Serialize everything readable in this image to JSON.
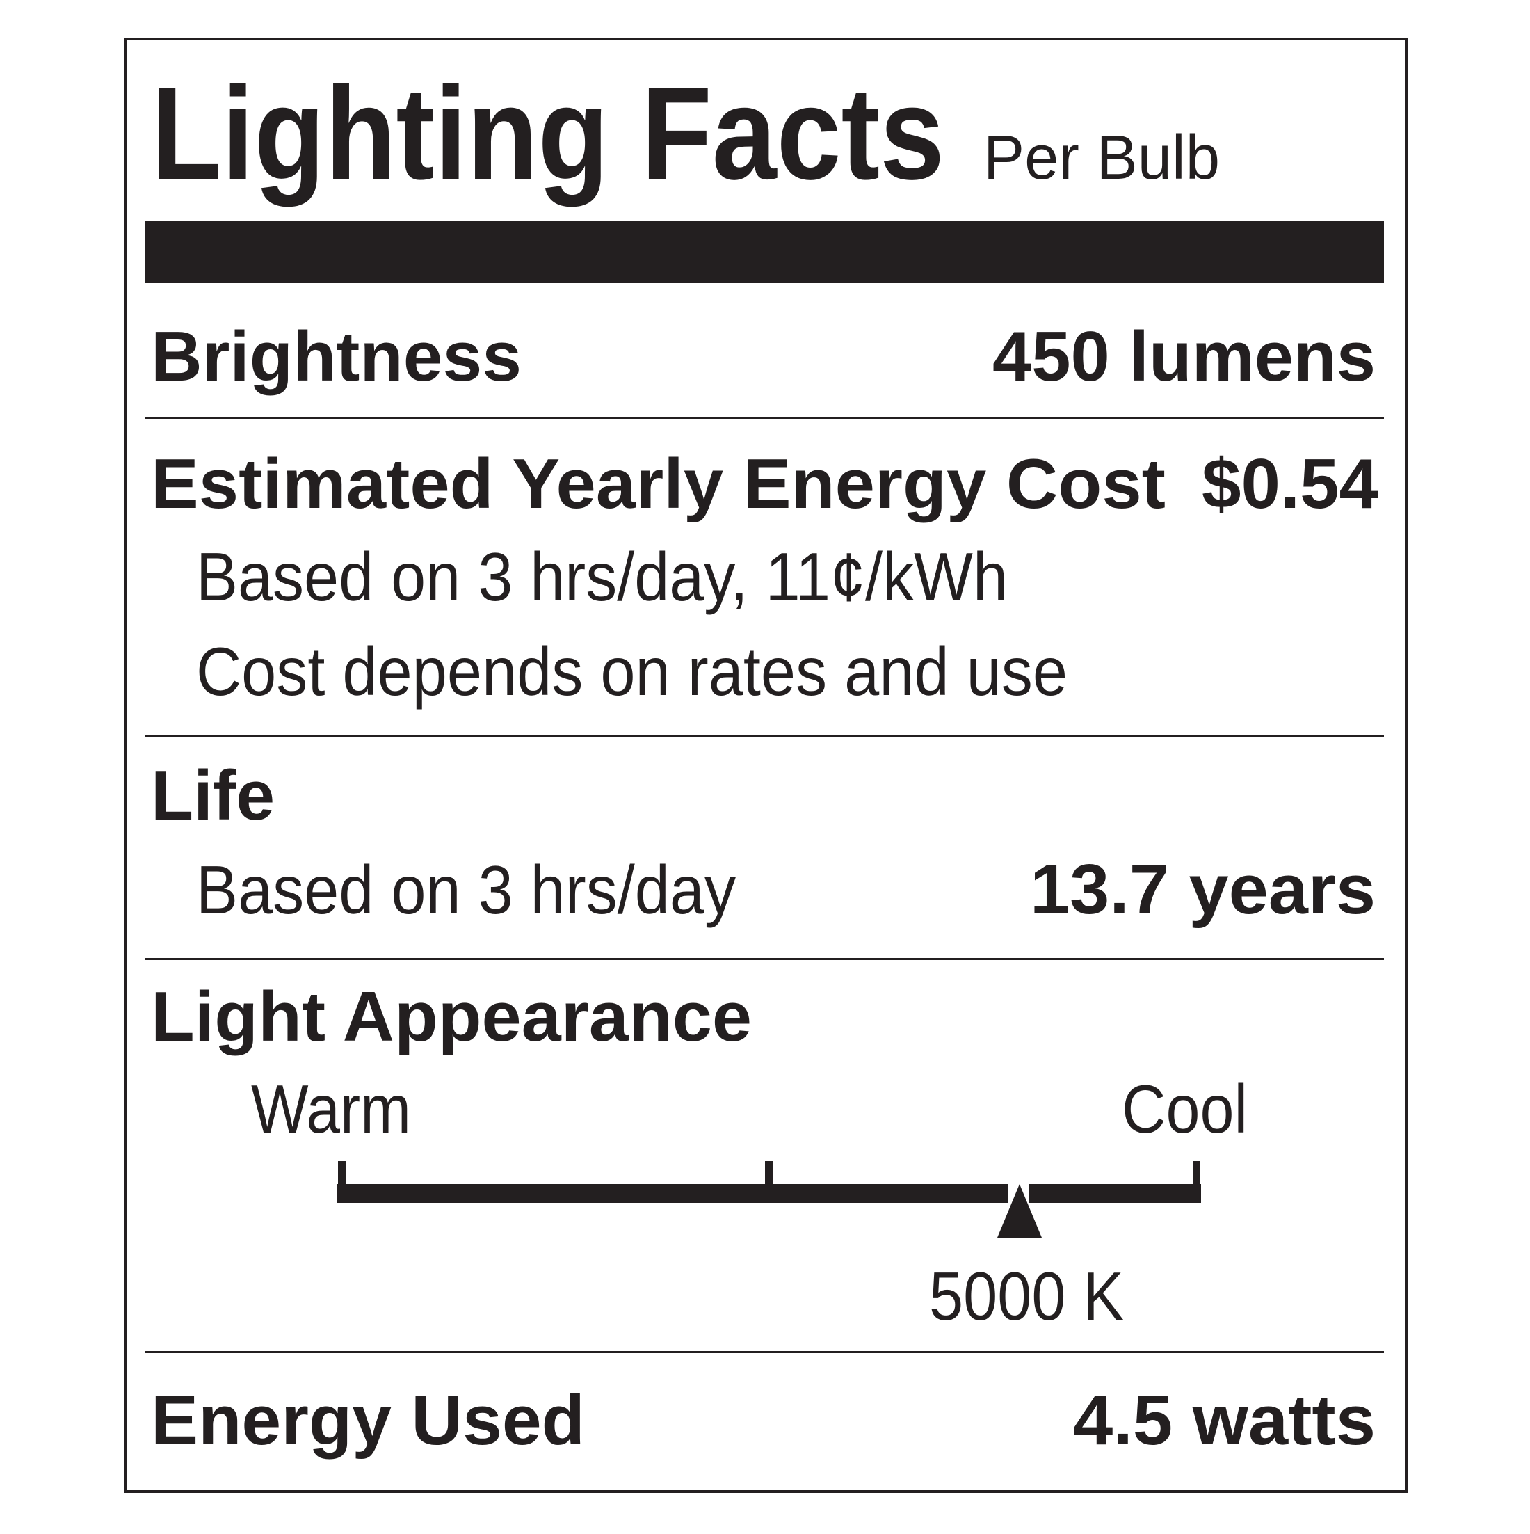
{
  "header": {
    "title": "Lighting Facts",
    "subtitle": "Per Bulb"
  },
  "brightness": {
    "label": "Brightness",
    "value": "450 lumens"
  },
  "energy_cost": {
    "label": "Estimated Yearly Energy Cost",
    "value": "$0.54",
    "notes": [
      "Based on 3 hrs/day, 11¢/kWh",
      "Cost depends on rates and use"
    ]
  },
  "life": {
    "label": "Life",
    "note": "Based on 3 hrs/day",
    "value": "13.7 years"
  },
  "light_appearance": {
    "label": "Light Appearance",
    "warm": "Warm",
    "cool": "Cool",
    "value": "5000 K"
  },
  "energy_used": {
    "label": "Energy Used",
    "value": "4.5 watts"
  }
}
